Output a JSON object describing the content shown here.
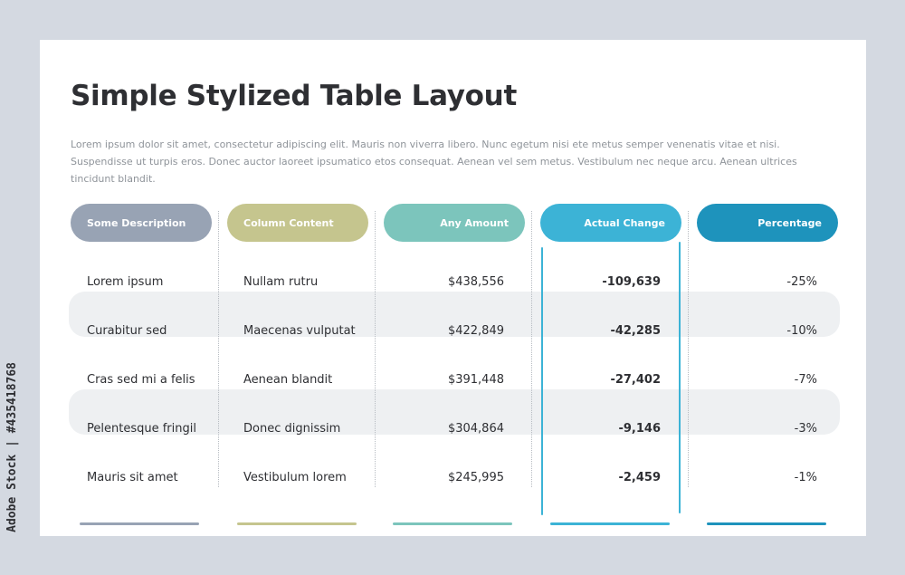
{
  "title": "Simple Stylized Table Layout",
  "description": "Lorem ipsum dolor sit amet, consectetur adipiscing elit. Mauris non viverra libero. Nunc egetum nisi ete metus semper venenatis vitae et nisi. Suspendisse ut turpis eros. Donec auctor laoreet ipsumatico etos consequat. Aenean vel sem metus. Vestibulum nec neque arcu. Aenean ultrices tincidunt blandit.",
  "columns": [
    {
      "label": "Some Description",
      "color": "#98a3b4"
    },
    {
      "label": "Column Content",
      "color": "#c5c58e"
    },
    {
      "label": "Any Amount",
      "color": "#7cc5bc"
    },
    {
      "label": "Actual Change",
      "color": "#3cb3d6"
    },
    {
      "label": "Percentage",
      "color": "#1e93bc"
    }
  ],
  "rows": [
    [
      "Lorem ipsum",
      "Nullam rutru",
      "$438,556",
      "-109,639",
      "-25%"
    ],
    [
      "Curabitur sed",
      "Maecenas vulputat",
      "$422,849",
      "-42,285",
      "-10%"
    ],
    [
      "Cras sed mi a felis",
      "Aenean blandit",
      "$391,448",
      "-27,402",
      "-7%"
    ],
    [
      "Pelentesque fringil",
      "Donec dignissim",
      "$304,864",
      "-9,146",
      "-3%"
    ],
    [
      "Mauris sit amet",
      "Vestibulum lorem",
      "$245,995",
      "-2,459",
      "-1%"
    ]
  ],
  "watermark": "Adobe Stock | #435418768"
}
